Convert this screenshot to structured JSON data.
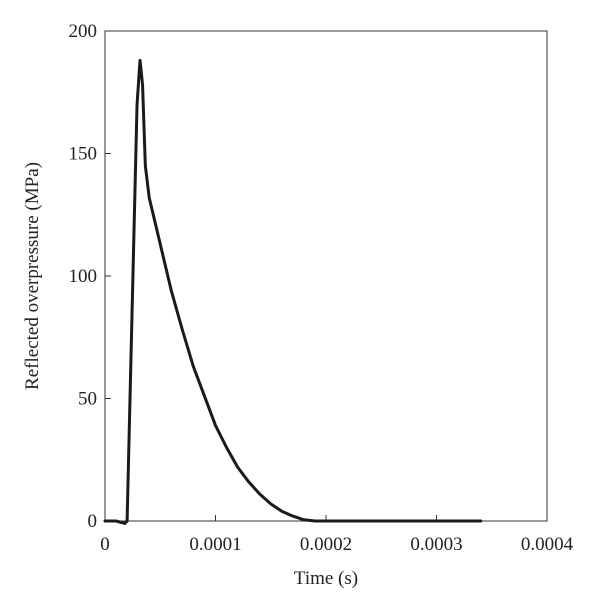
{
  "chart_data": {
    "type": "line",
    "x_label": "Time (s)",
    "y_label": "Reflected overpressure (MPa)",
    "xlim": [
      0,
      0.0004
    ],
    "xticks": [
      0,
      0.0001,
      0.0002,
      0.0003,
      0.0004
    ],
    "ylim": [
      0,
      200
    ],
    "yticks": [
      0,
      50,
      100,
      150,
      200
    ],
    "series": [
      {
        "color": "#1a1a1a",
        "x": [
          0,
          1e-05,
          1.8e-05,
          2e-05,
          2.5e-05,
          2.9e-05,
          3.17e-05,
          3.4e-05,
          3.65e-05,
          4e-05,
          5e-05,
          6e-05,
          7e-05,
          8e-05,
          9e-05,
          0.0001,
          0.00011,
          0.00012,
          0.00013,
          0.00014,
          0.00015,
          0.00016,
          0.00017,
          0.00018,
          0.00019,
          0.00025,
          0.00034
        ],
        "values": [
          0,
          0,
          -1,
          0,
          95,
          170,
          188,
          178,
          145,
          132,
          113,
          94,
          78,
          63,
          51,
          39,
          30,
          22,
          16,
          11,
          7,
          4,
          2,
          0.5,
          0,
          0,
          0
        ]
      }
    ]
  }
}
